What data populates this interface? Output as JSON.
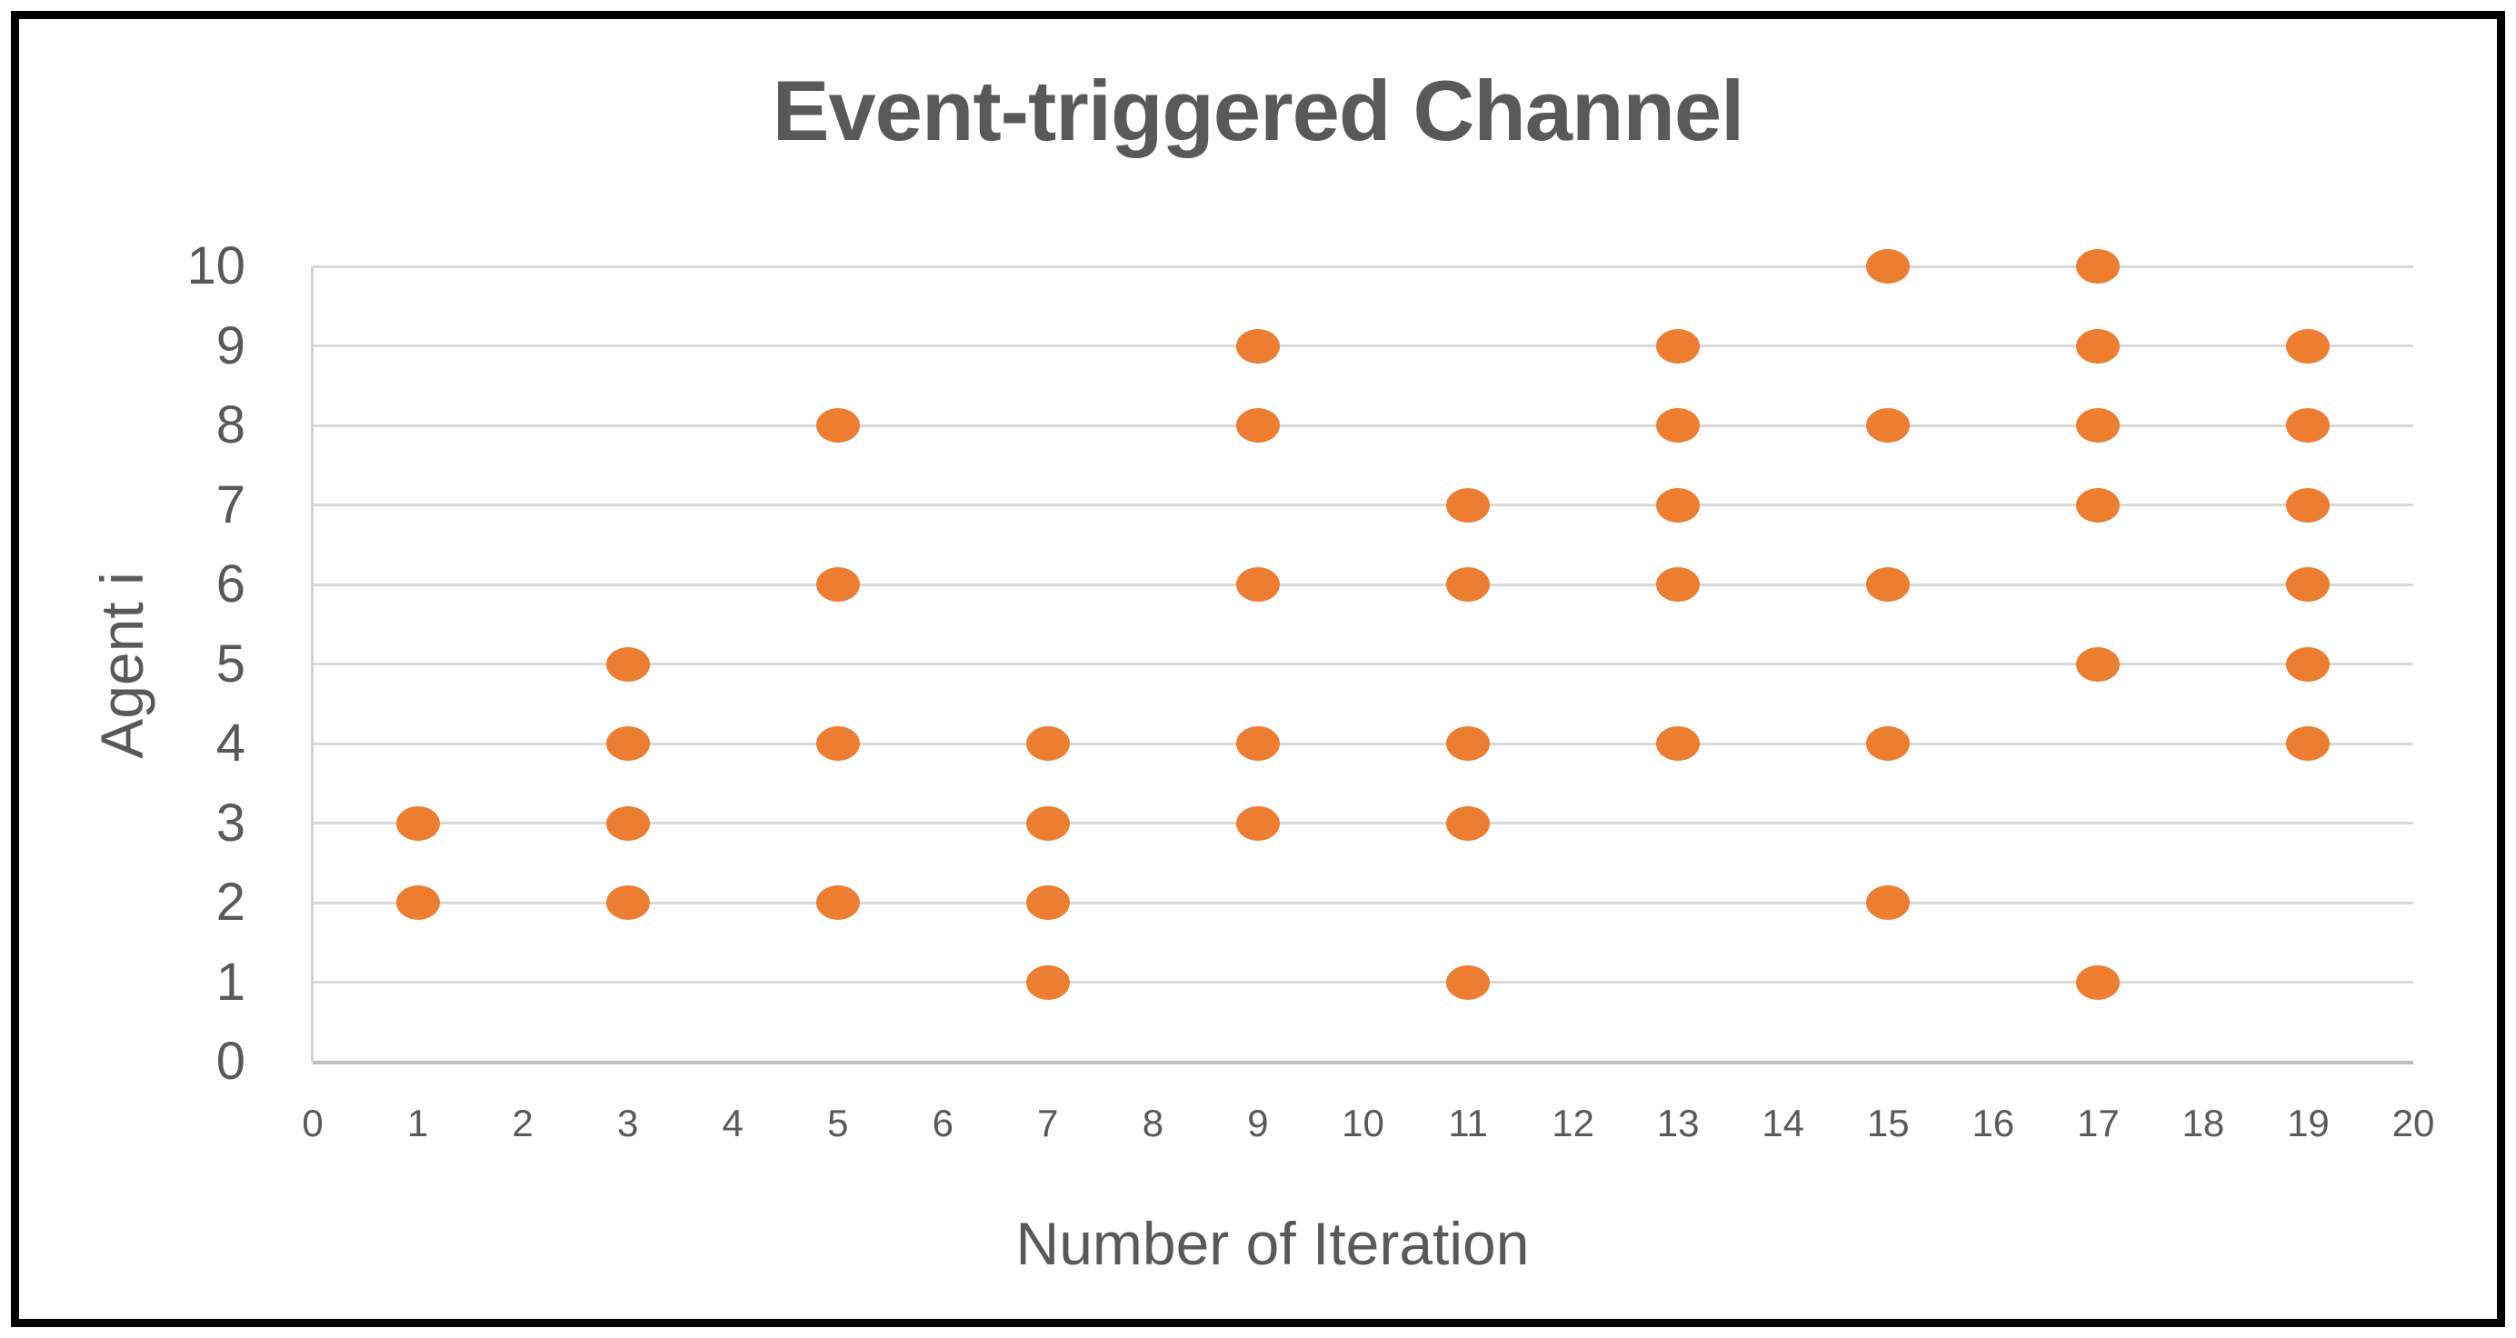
{
  "chart_data": {
    "type": "scatter",
    "title": "Event-triggered Channel",
    "xlabel": "Number of Iteration",
    "ylabel": "Agent i",
    "xlim": [
      0,
      20
    ],
    "ylim": [
      0,
      10
    ],
    "x_ticks": [
      0,
      1,
      2,
      3,
      4,
      5,
      6,
      7,
      8,
      9,
      10,
      11,
      12,
      13,
      14,
      15,
      16,
      17,
      18,
      19,
      20
    ],
    "y_ticks": [
      0,
      1,
      2,
      3,
      4,
      5,
      6,
      7,
      8,
      9,
      10
    ],
    "grid": "horizontal",
    "legend": "none",
    "marker": {
      "shape": "ellipse",
      "color": "#ED7D31"
    },
    "points": [
      [
        1,
        2
      ],
      [
        1,
        3
      ],
      [
        3,
        2
      ],
      [
        3,
        3
      ],
      [
        3,
        4
      ],
      [
        3,
        5
      ],
      [
        5,
        2
      ],
      [
        5,
        4
      ],
      [
        5,
        6
      ],
      [
        5,
        8
      ],
      [
        7,
        1
      ],
      [
        7,
        2
      ],
      [
        7,
        3
      ],
      [
        7,
        4
      ],
      [
        9,
        3
      ],
      [
        9,
        4
      ],
      [
        9,
        6
      ],
      [
        9,
        8
      ],
      [
        9,
        9
      ],
      [
        11,
        1
      ],
      [
        11,
        3
      ],
      [
        11,
        4
      ],
      [
        11,
        6
      ],
      [
        11,
        7
      ],
      [
        13,
        4
      ],
      [
        13,
        6
      ],
      [
        13,
        7
      ],
      [
        13,
        8
      ],
      [
        13,
        9
      ],
      [
        15,
        2
      ],
      [
        15,
        4
      ],
      [
        15,
        6
      ],
      [
        15,
        8
      ],
      [
        15,
        10
      ],
      [
        17,
        1
      ],
      [
        17,
        5
      ],
      [
        17,
        7
      ],
      [
        17,
        8
      ],
      [
        17,
        9
      ],
      [
        17,
        10
      ],
      [
        19,
        4
      ],
      [
        19,
        5
      ],
      [
        19,
        6
      ],
      [
        19,
        7
      ],
      [
        19,
        8
      ],
      [
        19,
        9
      ]
    ]
  },
  "colors": {
    "background": "#FFFFFF",
    "frame_border": "#000000",
    "gridline": "#D9D9D9",
    "axis_line": "#BFBFBF",
    "text": "#595959",
    "marker": "#ED7D31"
  }
}
